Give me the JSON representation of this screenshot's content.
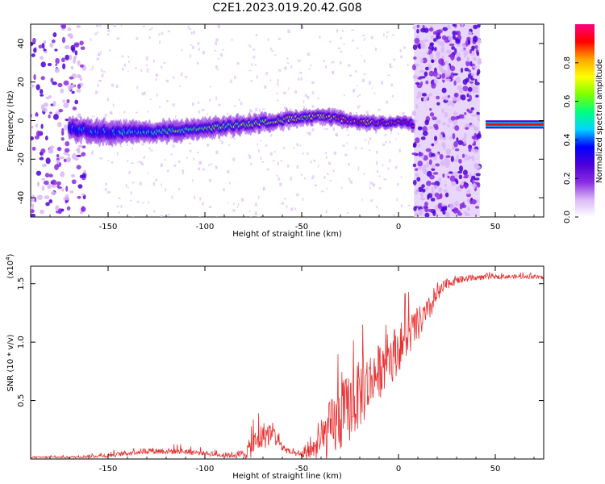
{
  "title": "C2E1.2023.019.20.42.G08",
  "chart_data": [
    {
      "type": "heatmap",
      "title": "C2E1.2023.019.20.42.G08",
      "xlabel": "Height of straight line (km)",
      "ylabel": "Frequency (Hz)",
      "xlim": [
        -190,
        75
      ],
      "ylim": [
        -50,
        50
      ],
      "xticks": [
        -150,
        -100,
        -50,
        0,
        50
      ],
      "yticks": [
        -40,
        -20,
        0,
        20,
        40
      ],
      "colorbar": {
        "label": "Normalized spectral amplitude",
        "range": [
          0,
          1
        ],
        "ticks": [
          "0.0",
          "0.2",
          "0.4",
          "0.6",
          "0.8"
        ],
        "tick_values": [
          0.0,
          0.2,
          0.4,
          0.6,
          0.8
        ],
        "colormap": [
          "#ffffff",
          "#d9b7f7",
          "#8a2be2",
          "#4b00d8",
          "#0000ff",
          "#00d5ff",
          "#00ff7f",
          "#7fff00",
          "#ffff00",
          "#ffa500",
          "#ff0000",
          "#ff0080"
        ]
      },
      "ridge": {
        "x": [
          -170,
          -150,
          -130,
          -110,
          -90,
          -70,
          -55,
          -40,
          -30,
          -20,
          -10,
          0,
          5,
          8
        ],
        "y": [
          -4,
          -6,
          -6,
          -5,
          -3,
          -1,
          1,
          2,
          1,
          -1,
          -1,
          -1,
          -1,
          -2
        ]
      },
      "noise_bands": [
        [
          -190,
          -162
        ],
        [
          8,
          42
        ]
      ],
      "secondary_ridge": {
        "x": [
          45,
          75
        ],
        "y": [
          -2,
          -2
        ]
      },
      "grid": false
    },
    {
      "type": "line",
      "xlabel": "Height of straight line (km)",
      "ylabel": "SNR (10 * v/v)",
      "y_multiplier_label": "(x10",
      "y_multiplier_exp": "4",
      "xlim": [
        -190,
        75
      ],
      "ylim": [
        0,
        16500
      ],
      "xticks": [
        -150,
        -100,
        -50,
        0,
        50
      ],
      "yticks": [
        5000,
        10000,
        15000
      ],
      "yticklabels": [
        "0.5",
        "1.0",
        "1.5"
      ],
      "series_color": "#e83030",
      "envelope": {
        "x": [
          -190,
          -170,
          -150,
          -130,
          -110,
          -90,
          -80,
          -75,
          -70,
          -65,
          -60,
          -55,
          -50,
          -45,
          -40,
          -35,
          -30,
          -25,
          -20,
          -15,
          -10,
          -5,
          0,
          5,
          10,
          15,
          20,
          25,
          30,
          40,
          50,
          60,
          70,
          75
        ],
        "base": [
          150,
          150,
          300,
          700,
          650,
          300,
          400,
          1200,
          2000,
          2200,
          1000,
          500,
          300,
          600,
          1500,
          2500,
          3500,
          4500,
          5500,
          6500,
          7500,
          8500,
          9500,
          10500,
          11500,
          12500,
          14000,
          15000,
          15300,
          15500,
          15600,
          15600,
          15600,
          15500
        ],
        "amp": [
          100,
          150,
          300,
          450,
          450,
          250,
          700,
          1800,
          2000,
          1700,
          700,
          300,
          300,
          1200,
          3000,
          4500,
          5000,
          5000,
          5000,
          4500,
          4000,
          4000,
          3500,
          3000,
          2500,
          2000,
          1200,
          800,
          600,
          400,
          300,
          300,
          300,
          300
        ]
      },
      "grid": false
    }
  ]
}
